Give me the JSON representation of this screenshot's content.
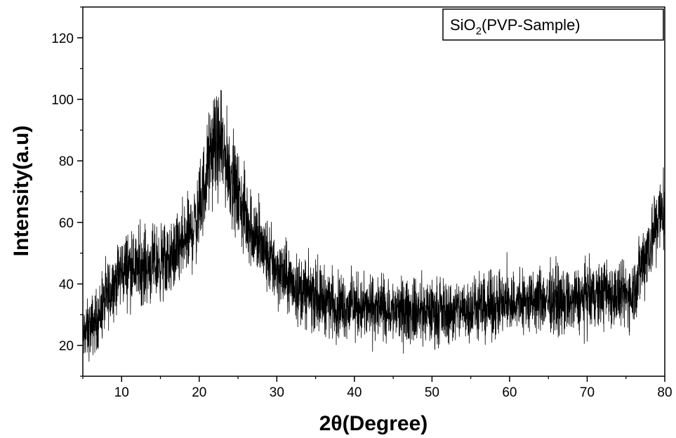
{
  "chart_data": {
    "type": "line",
    "title": "",
    "xlabel": "2θ(Degree)",
    "ylabel": "Intensity(a.u)",
    "xlim": [
      5,
      80
    ],
    "ylim": [
      10,
      130
    ],
    "xticks": [
      10,
      20,
      30,
      40,
      50,
      60,
      70,
      80
    ],
    "yticks": [
      20,
      40,
      60,
      80,
      100,
      120
    ],
    "grid": false,
    "legend": {
      "position": "top-right",
      "label_main": "SiO",
      "label_sub": "2",
      "label_tail": "(PVP-Sample)"
    },
    "series": [
      {
        "color": "#000000",
        "x": [
          5,
          6,
          7,
          8,
          9,
          10,
          11,
          12,
          13,
          14,
          15,
          16,
          17,
          18,
          19,
          20,
          20.5,
          21,
          21.5,
          22,
          22.5,
          23,
          23.5,
          24,
          24.5,
          25,
          26,
          27,
          28,
          29,
          30,
          31,
          32,
          33,
          34,
          35,
          36,
          37,
          38,
          39,
          40,
          41,
          42,
          43,
          44,
          45,
          46,
          47,
          48,
          49,
          50,
          51,
          52,
          53,
          54,
          55,
          56,
          57,
          58,
          59,
          60,
          61,
          62,
          63,
          64,
          65,
          66,
          67,
          68,
          69,
          70,
          71,
          72,
          73,
          74,
          75,
          76,
          76.5,
          77,
          77.5,
          78,
          78.5,
          79,
          79.5,
          80
        ],
        "y": [
          23,
          26,
          29,
          35,
          40,
          44,
          46,
          45,
          46,
          46,
          47,
          47,
          50,
          53,
          57,
          63,
          70,
          77,
          82,
          85,
          85,
          83,
          80,
          76,
          72,
          68,
          62,
          57,
          52,
          48,
          45,
          42,
          40,
          38,
          37,
          36,
          35,
          34,
          33,
          33,
          33,
          32,
          32,
          32,
          32,
          31,
          31,
          31,
          31,
          31,
          31,
          31,
          31,
          31,
          32,
          32,
          32,
          32,
          33,
          33,
          34,
          34,
          34,
          34,
          35,
          35,
          35,
          34,
          34,
          35,
          36,
          36,
          37,
          37,
          36,
          36,
          38,
          42,
          46,
          50,
          53,
          56,
          60,
          63,
          65
        ],
        "noise_amplitude": 6
      }
    ]
  }
}
